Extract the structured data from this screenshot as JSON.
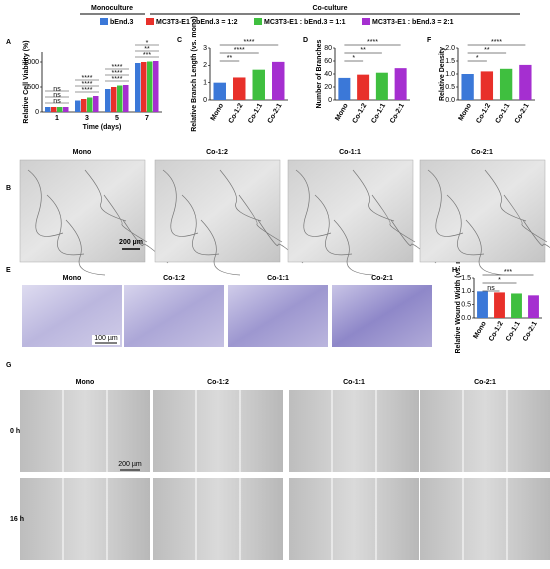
{
  "legend": {
    "monoculture": "Monoculture",
    "coculture": "Co-culture"
  },
  "panel_labels": [
    "A",
    "B",
    "C",
    "D",
    "E",
    "F",
    "G",
    "H"
  ],
  "tube_images": {
    "columns": [
      "Mono",
      "Co-1:2",
      "Co-1:1",
      "Co-2:1"
    ],
    "scale_bar": "200 µm"
  },
  "transwell_images": {
    "columns": [
      "Mono",
      "Co-1:2",
      "Co-1:1",
      "Co-2:1"
    ],
    "scale_bar": "100 µm"
  },
  "wound_images": {
    "columns": [
      "Mono",
      "Co-1:2",
      "Co-1:1",
      "Co-2:1"
    ],
    "rows": [
      "0 h",
      "16 h"
    ],
    "scale_bar": "200 µm"
  },
  "chart_data": [
    {
      "type": "grouped-bar",
      "ylabel": "Relative Cell Viability (%)",
      "xlabel": "Time (days)",
      "categories": [
        "1",
        "3",
        "5",
        "7"
      ],
      "series": [
        {
          "name": "bEnd.3",
          "color": "#3b78d8",
          "values": [
            100,
            230,
            460,
            980
          ]
        },
        {
          "name": "MC3T3-E1 : bEnd.3  = 1:2",
          "color": "#e8302a",
          "values": [
            100,
            260,
            500,
            1000
          ]
        },
        {
          "name": "MC3T3-E1 : bEnd.3 = 1:1",
          "color": "#3fbf3f",
          "values": [
            100,
            290,
            530,
            1010
          ]
        },
        {
          "name": "MC3T3-E1 : bEnd.3 = 2:1",
          "color": "#a52fd0",
          "values": [
            100,
            320,
            540,
            1020
          ]
        }
      ],
      "ylim": [
        0,
        1200
      ],
      "yticks": [
        0,
        500,
        1000
      ],
      "annotations": [
        [
          "ns",
          "ns",
          "ns"
        ],
        [
          "****",
          "****",
          "****"
        ],
        [
          "****",
          "****",
          "****"
        ],
        [
          "***",
          "**",
          "*"
        ]
      ]
    },
    {
      "type": "bar",
      "ylabel": "Relative Branch Length (vs. mono)",
      "categories": [
        "Mono",
        "Co-1:2",
        "Co-1:1",
        "Co-2:1"
      ],
      "values": [
        1.0,
        1.3,
        1.75,
        2.2
      ],
      "colors": [
        "#3b78d8",
        "#e8302a",
        "#3fbf3f",
        "#a52fd0"
      ],
      "ylim": [
        0,
        3
      ],
      "yticks": [
        0,
        1,
        2,
        3
      ],
      "annotations": [
        "**",
        "****",
        "****"
      ]
    },
    {
      "type": "bar",
      "ylabel": "Number of Branches",
      "categories": [
        "Mono",
        "Co-1:2",
        "Co-1:1",
        "Co-2:1"
      ],
      "values": [
        34,
        39,
        42,
        49
      ],
      "colors": [
        "#3b78d8",
        "#e8302a",
        "#3fbf3f",
        "#a52fd0"
      ],
      "ylim": [
        0,
        80
      ],
      "yticks": [
        0,
        20,
        40,
        60,
        80
      ],
      "annotations": [
        "*",
        "**",
        "****"
      ]
    },
    {
      "type": "bar",
      "ylabel": "Relative Density",
      "categories": [
        "Mono",
        "Co-1:2",
        "Co-1:1",
        "Co-2:1"
      ],
      "values": [
        1.0,
        1.1,
        1.2,
        1.35
      ],
      "colors": [
        "#3b78d8",
        "#e8302a",
        "#3fbf3f",
        "#a52fd0"
      ],
      "ylim": [
        0,
        2
      ],
      "yticks": [
        {
          "value": 0,
          "label": "0.0"
        },
        {
          "value": 0.5,
          "label": "0.5"
        },
        {
          "value": 1,
          "label": "1.0"
        },
        {
          "value": 1.5,
          "label": "1.5"
        },
        {
          "value": 2,
          "label": "2.0"
        }
      ],
      "annotations": [
        "*",
        "**",
        "****"
      ]
    },
    {
      "type": "bar",
      "ylabel": "Relative Wound Width (vs. mono)",
      "categories": [
        "Mono",
        "Co-1:2",
        "Co-1:1",
        "Co-2:1"
      ],
      "values": [
        1.0,
        0.96,
        0.92,
        0.85
      ],
      "colors": [
        "#3b78d8",
        "#e8302a",
        "#3fbf3f",
        "#a52fd0"
      ],
      "ylim": [
        0,
        1.5
      ],
      "yticks": [
        {
          "value": 0,
          "label": "0.0"
        },
        {
          "value": 0.5,
          "label": "0.5"
        },
        {
          "value": 1,
          "label": "1.0"
        },
        {
          "value": 1.5,
          "label": "1.5"
        }
      ],
      "annotations": [
        "ns",
        "*",
        "***"
      ]
    }
  ]
}
